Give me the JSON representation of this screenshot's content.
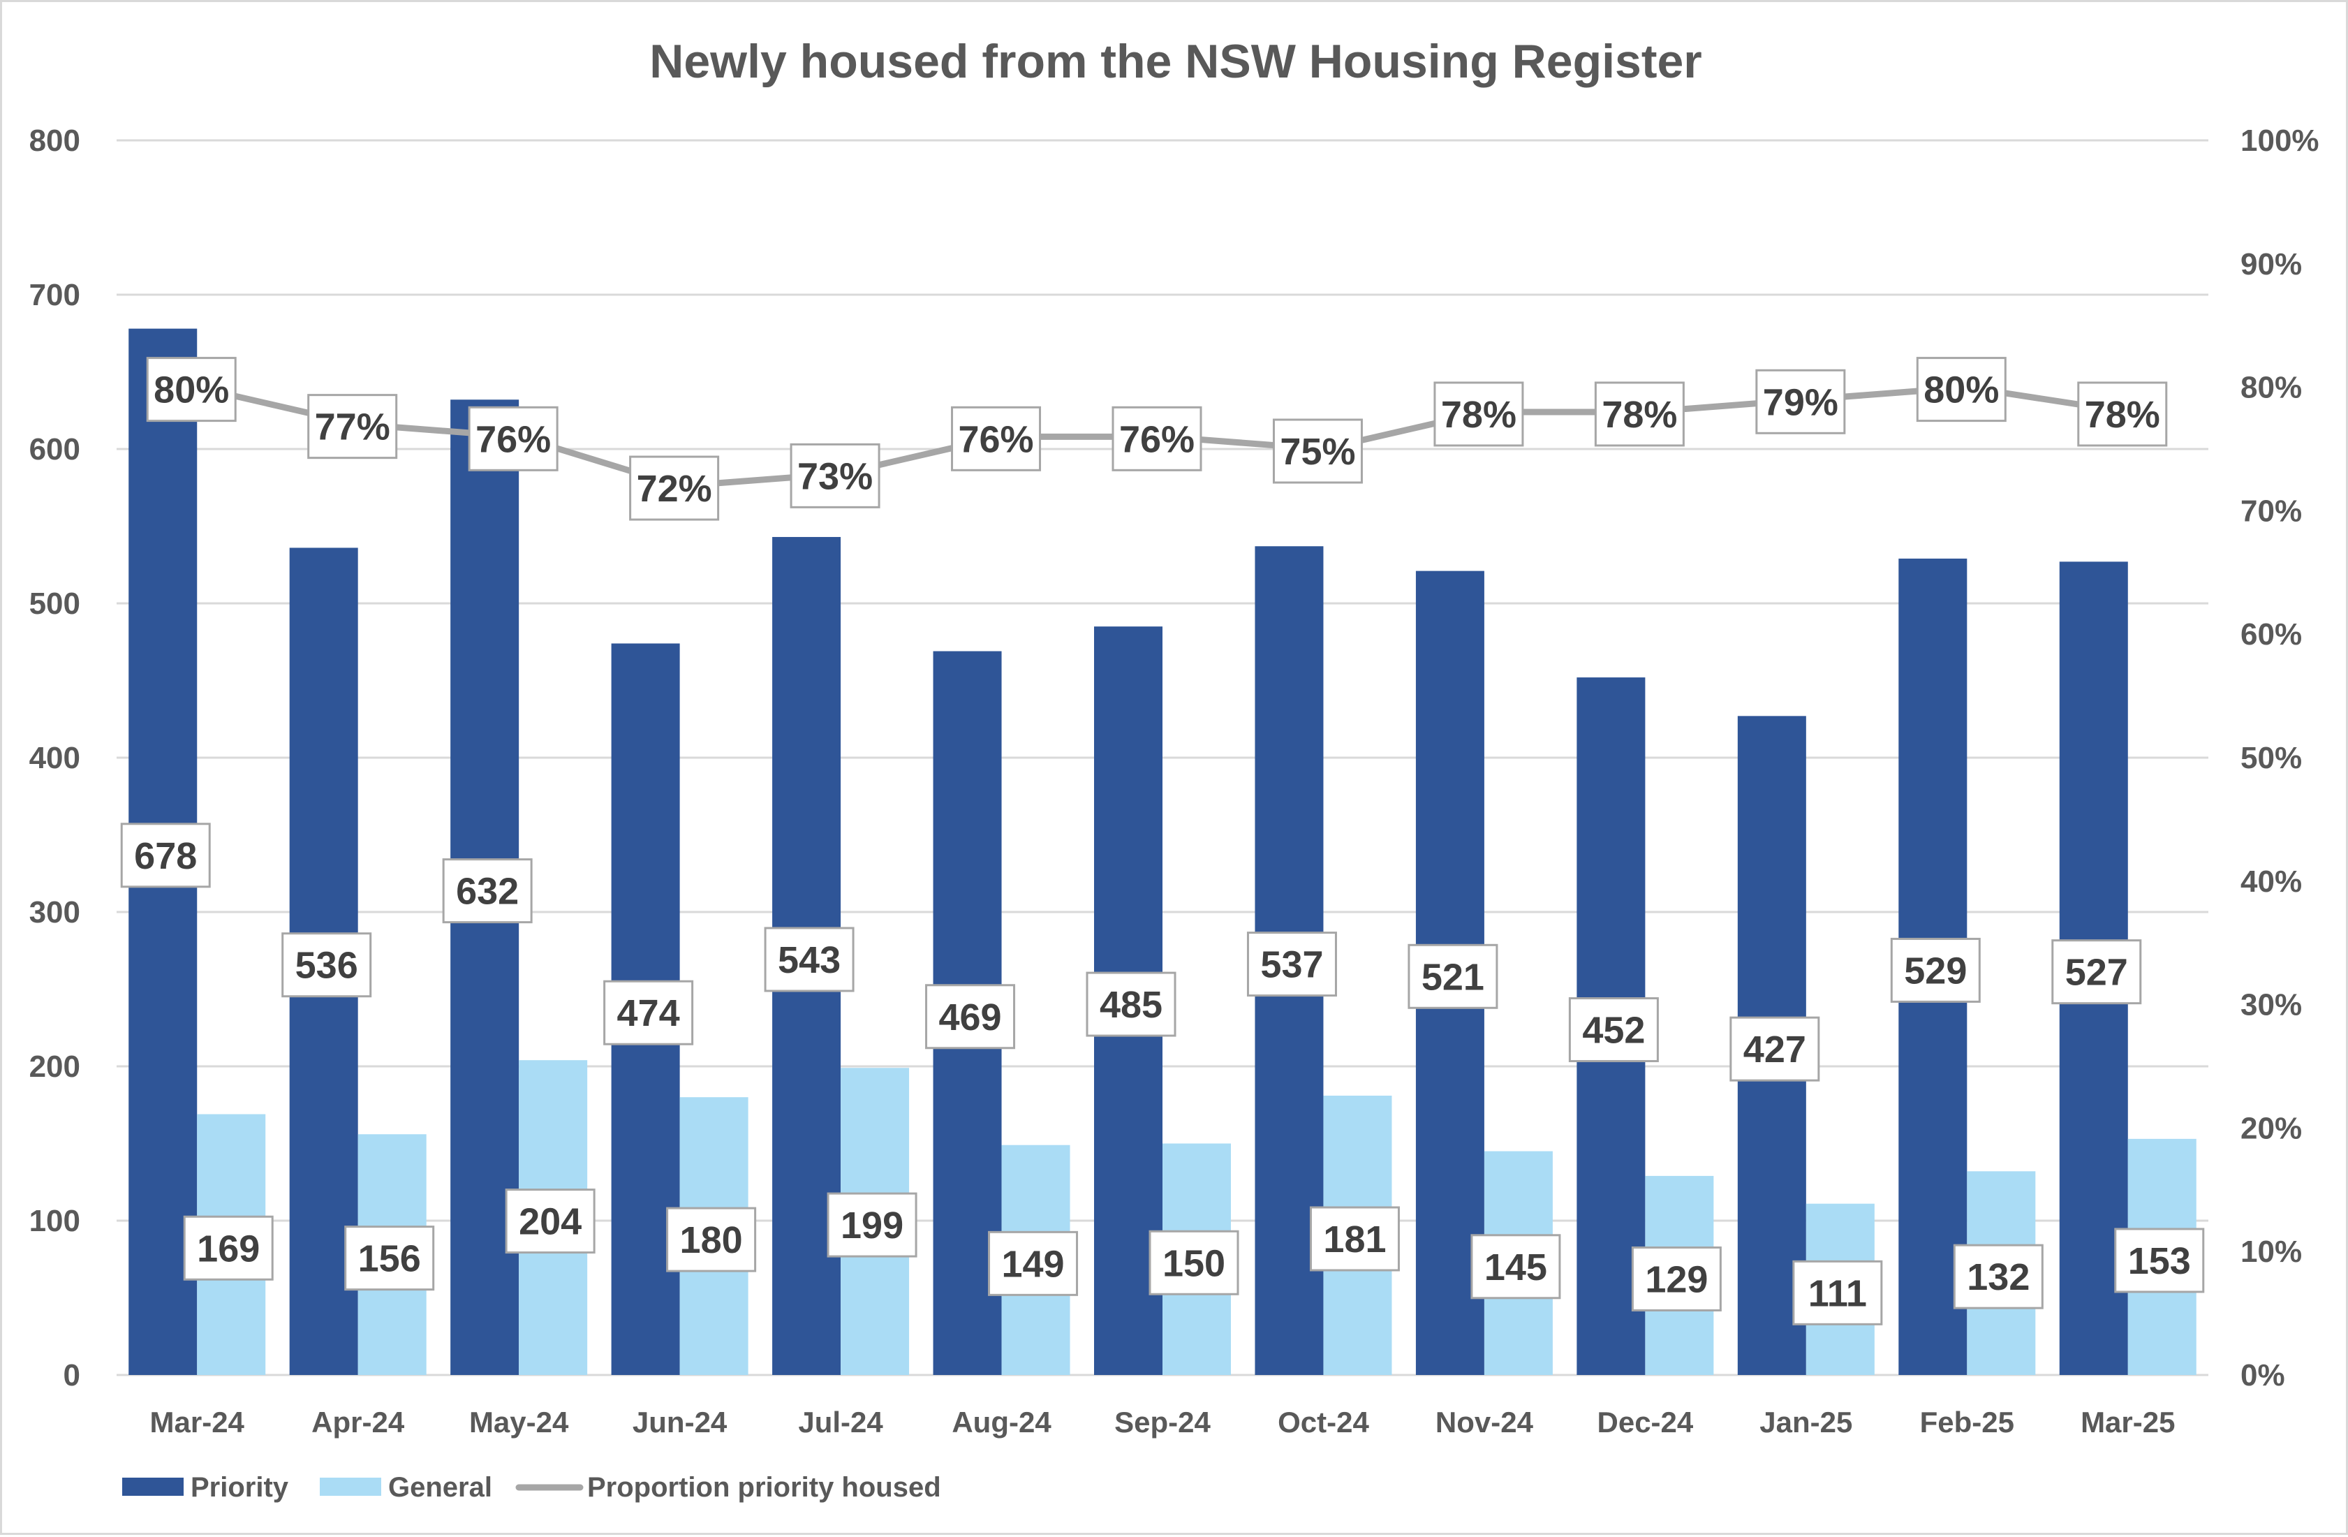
{
  "chart_data": {
    "type": "bar",
    "title": "Newly housed from the NSW Housing Register",
    "categories": [
      "Mar-24",
      "Apr-24",
      "May-24",
      "Jun-24",
      "Jul-24",
      "Aug-24",
      "Sep-24",
      "Oct-24",
      "Nov-24",
      "Dec-24",
      "Jan-25",
      "Feb-25",
      "Mar-25"
    ],
    "series": [
      {
        "name": "Priority",
        "type": "bar",
        "axis": "left",
        "color": "#2f5597",
        "values": [
          678,
          536,
          632,
          474,
          543,
          469,
          485,
          537,
          521,
          452,
          427,
          529,
          527
        ],
        "labels": [
          "678",
          "536",
          "632",
          "474",
          "543",
          "469",
          "485",
          "537",
          "521",
          "452",
          "427",
          "529",
          "527"
        ]
      },
      {
        "name": "General",
        "type": "bar",
        "axis": "left",
        "color": "#aadcf5",
        "values": [
          169,
          156,
          204,
          180,
          199,
          149,
          150,
          181,
          145,
          129,
          111,
          132,
          153
        ],
        "labels": [
          "169",
          "156",
          "204",
          "180",
          "199",
          "149",
          "150",
          "181",
          "145",
          "129",
          "111",
          "132",
          "153"
        ]
      },
      {
        "name": "Proportion priority housed",
        "type": "line",
        "axis": "right",
        "color": "#a6a6a6",
        "values": [
          80,
          77,
          76,
          72,
          73,
          76,
          76,
          75,
          78,
          78,
          79,
          80,
          78
        ],
        "labels": [
          "80%",
          "77%",
          "76%",
          "72%",
          "73%",
          "76%",
          "76%",
          "75%",
          "78%",
          "78%",
          "79%",
          "80%",
          "78%"
        ]
      }
    ],
    "xlabel": "",
    "ylabel": "",
    "ylim": [
      0,
      800
    ],
    "y_ticks": [
      "0",
      "100",
      "200",
      "300",
      "400",
      "500",
      "600",
      "700",
      "800"
    ],
    "y2lim": [
      0,
      100
    ],
    "y2_ticks": [
      "0%",
      "10%",
      "20%",
      "30%",
      "40%",
      "50%",
      "60%",
      "70%",
      "80%",
      "90%",
      "100%"
    ],
    "grid": true,
    "legend_position": "bottom-left"
  }
}
